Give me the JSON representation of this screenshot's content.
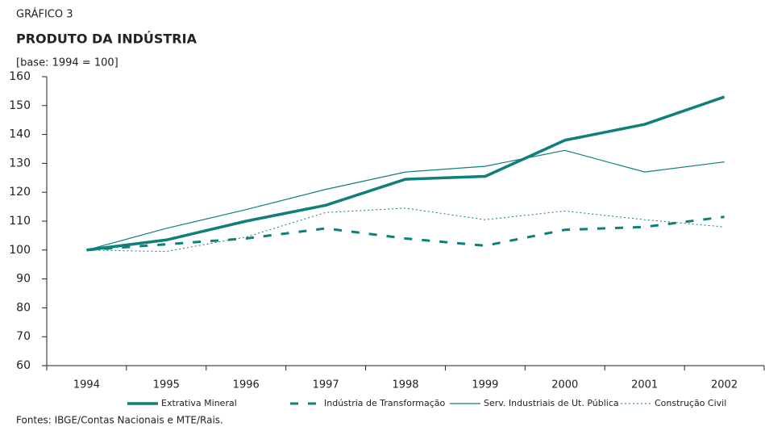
{
  "chart_data": {
    "type": "line",
    "kicker": "GRÁFICO 3",
    "title": "PRODUTO DA INDÚSTRIA",
    "subtitle": "[base: 1994 = 100]",
    "source": "Fontes: IBGE/Contas Nacionais e MTE/Rais.",
    "categories": [
      "1994",
      "1995",
      "1996",
      "1997",
      "1998",
      "1999",
      "2000",
      "2001",
      "2002"
    ],
    "series": [
      {
        "name": "Extrativa Mineral",
        "color": "#0f7f7a",
        "style": "thick",
        "values": [
          100,
          103.5,
          110,
          115.5,
          124.5,
          125.5,
          138,
          143.5,
          153
        ]
      },
      {
        "name": "Indústria de Transformação",
        "color": "#0f7f7a",
        "style": "dashed",
        "values": [
          100,
          102,
          104,
          107.5,
          104,
          101.5,
          107,
          108,
          111.5
        ]
      },
      {
        "name": "Serv. Industriais de Ut. Pública",
        "color": "#0f7f7a",
        "style": "thin",
        "values": [
          100,
          107.5,
          114,
          121,
          127,
          129,
          134.5,
          127,
          130.5
        ]
      },
      {
        "name": "Construção Civil",
        "color": "#0f7f7a",
        "style": "dotted",
        "values": [
          100,
          99.5,
          104.5,
          113,
          114.5,
          110.5,
          113.5,
          110.5,
          108
        ]
      }
    ],
    "ylim": [
      60,
      160
    ],
    "yticks": [
      60,
      70,
      80,
      90,
      100,
      110,
      120,
      130,
      140,
      150,
      160
    ],
    "grid": false
  }
}
